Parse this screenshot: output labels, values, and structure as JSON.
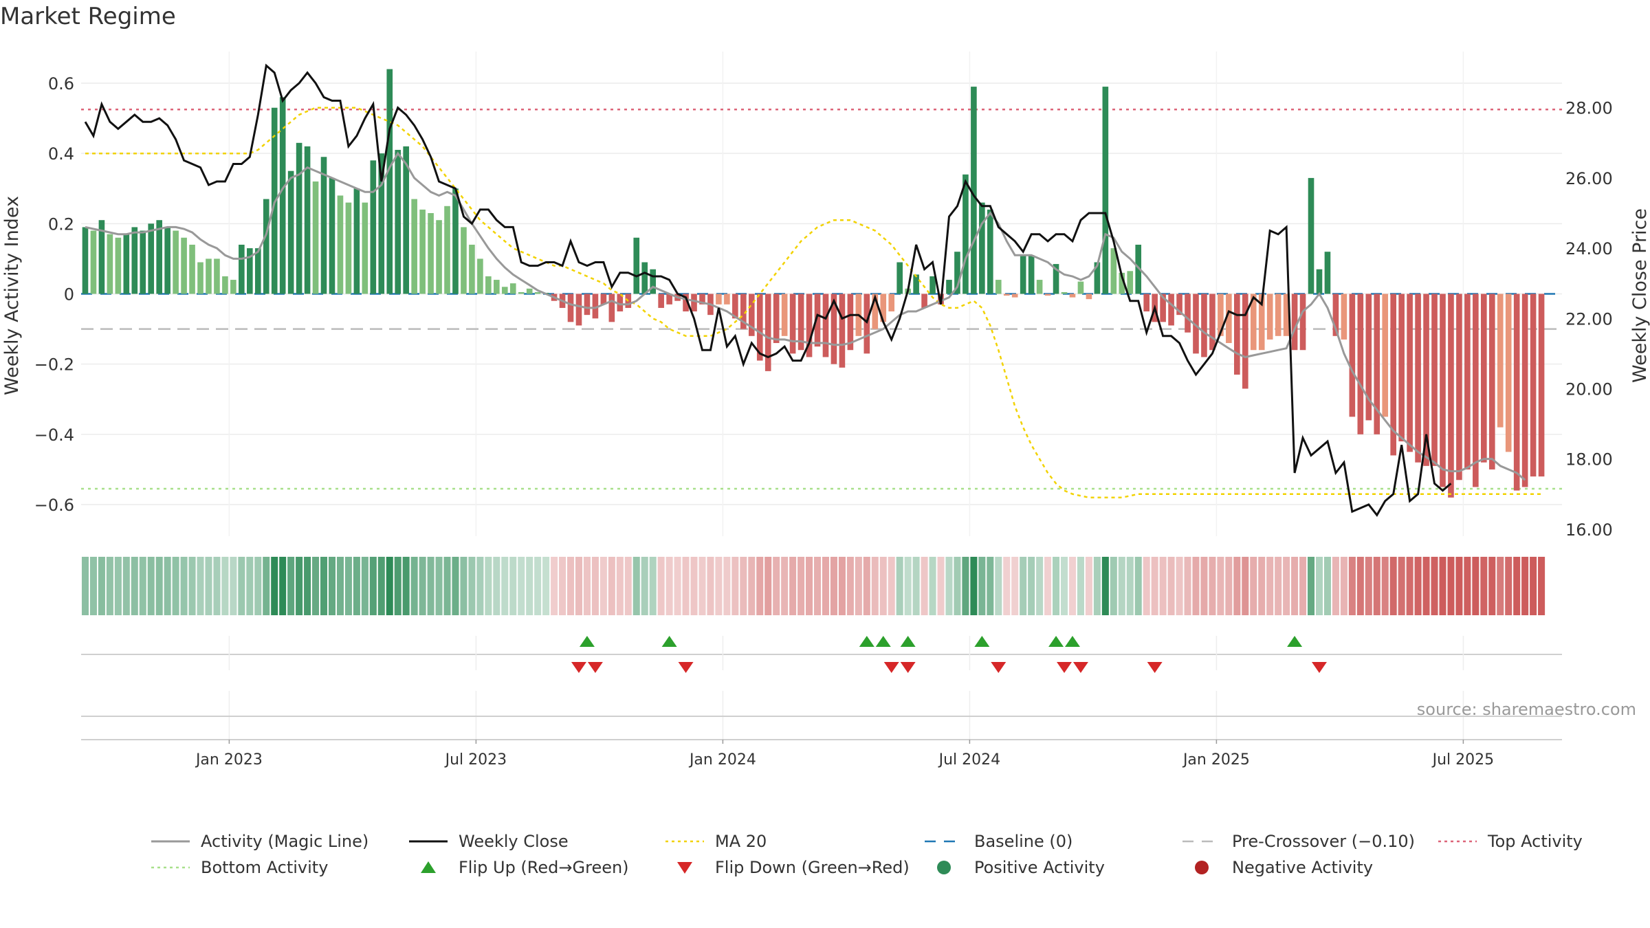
{
  "title": "Market Regime",
  "source": "source: sharemaestro.com",
  "colors": {
    "strong_green": "#2e8b57",
    "light_green": "#7fbf7b",
    "strong_red": "#cd5c5c",
    "light_red": "#e9967a",
    "magic_line": "#999999",
    "close_line": "#111111",
    "ma20": "#f2d200",
    "baseline": "#1f77b4",
    "pre_crossover": "#bbbbbb",
    "top_activity": "#dc6478",
    "bottom_activity": "#a8e08a",
    "flip_up": "#2ca02c",
    "flip_down": "#d62728"
  },
  "chart_data": {
    "type": "bar",
    "title": "Market Regime",
    "ylabel": "Weekly Activity Index",
    "y2label": "Weekly Close Price",
    "ylim": [
      -0.69,
      0.69
    ],
    "y2lim": [
      15.8,
      29.6
    ],
    "yticks": [
      "0.6",
      "0.4",
      "0.2",
      "0",
      "−0.2",
      "−0.4",
      "−0.6"
    ],
    "yticks_values": [
      0.6,
      0.4,
      0.2,
      0,
      -0.2,
      -0.4,
      -0.6
    ],
    "y2ticks": [
      "28.00",
      "26.00",
      "24.00",
      "22.00",
      "20.00",
      "18.00",
      "16.00"
    ],
    "y2ticks_values": [
      28,
      26,
      24,
      22,
      20,
      18,
      16
    ],
    "xticks": [
      "Jan 2023",
      "Jul 2023",
      "Jan 2024",
      "Jul 2024",
      "Jan 2025",
      "Jul 2025"
    ],
    "xticks_week_index": [
      18,
      48,
      78,
      108,
      138,
      168
    ],
    "x_week_count": 180,
    "top_activity": 0.525,
    "bottom_activity": -0.555,
    "pre_crossover": -0.1,
    "baseline": 0,
    "legend_position": "bottom",
    "legend": [
      "Activity (Magic Line)",
      "Weekly Close",
      "MA 20",
      "Baseline (0)",
      "Pre-Crossover (−0.10)",
      "Top Activity",
      "Bottom Activity",
      "Flip Up (Red→Green)",
      "Flip Down (Green→Red)",
      "Positive Activity",
      "Negative Activity"
    ],
    "activity": [
      0.19,
      0.18,
      0.21,
      0.17,
      0.16,
      0.17,
      0.19,
      0.18,
      0.2,
      0.21,
      0.19,
      0.18,
      0.16,
      0.14,
      0.09,
      0.1,
      0.1,
      0.05,
      0.04,
      0.14,
      0.13,
      0.13,
      0.27,
      0.53,
      0.56,
      0.35,
      0.43,
      0.42,
      0.32,
      0.39,
      0.33,
      0.28,
      0.26,
      0.3,
      0.26,
      0.38,
      0.4,
      0.64,
      0.41,
      0.42,
      0.27,
      0.24,
      0.23,
      0.21,
      0.25,
      0.3,
      0.19,
      0.14,
      0.1,
      0.05,
      0.04,
      0.02,
      0.03,
      0.005,
      0.015,
      0.005,
      0.003,
      -0.02,
      -0.04,
      -0.08,
      -0.09,
      -0.06,
      -0.07,
      -0.03,
      -0.08,
      -0.05,
      -0.04,
      0.16,
      0.09,
      0.07,
      -0.04,
      -0.03,
      -0.02,
      -0.05,
      -0.05,
      -0.03,
      -0.06,
      -0.03,
      -0.03,
      -0.07,
      -0.1,
      -0.12,
      -0.19,
      -0.22,
      -0.14,
      -0.12,
      -0.17,
      -0.16,
      -0.18,
      -0.15,
      -0.18,
      -0.2,
      -0.21,
      -0.16,
      -0.12,
      -0.17,
      -0.1,
      -0.08,
      -0.05,
      0.09,
      0.015,
      0.055,
      -0.04,
      0.05,
      -0.03,
      0.04,
      0.12,
      0.34,
      0.59,
      0.26,
      0.24,
      0.04,
      -0.005,
      -0.01,
      0.11,
      0.11,
      0.04,
      -0.005,
      0.085,
      0.005,
      -0.01,
      0.035,
      -0.015,
      0.09,
      0.59,
      0.13,
      0.06,
      0.065,
      0.14,
      -0.05,
      -0.08,
      -0.08,
      -0.09,
      -0.06,
      -0.11,
      -0.17,
      -0.18,
      -0.16,
      -0.12,
      -0.14,
      -0.23,
      -0.27,
      -0.16,
      -0.16,
      -0.13,
      -0.12,
      -0.12,
      -0.16,
      -0.16,
      0.33,
      0.07,
      0.12,
      -0.12,
      -0.13,
      -0.35,
      -0.4,
      -0.36,
      -0.4,
      -0.35,
      -0.46,
      -0.42,
      -0.45,
      -0.48,
      -0.49,
      -0.49,
      -0.55,
      -0.58,
      -0.53,
      -0.5,
      -0.55,
      -0.48,
      -0.5,
      -0.38,
      -0.45,
      -0.56,
      -0.55,
      -0.52,
      -0.52
    ],
    "magic_line": [
      0.19,
      0.185,
      0.18,
      0.175,
      0.17,
      0.17,
      0.175,
      0.175,
      0.18,
      0.185,
      0.19,
      0.19,
      0.185,
      0.175,
      0.155,
      0.14,
      0.13,
      0.11,
      0.1,
      0.1,
      0.105,
      0.12,
      0.17,
      0.26,
      0.3,
      0.33,
      0.34,
      0.36,
      0.35,
      0.34,
      0.33,
      0.32,
      0.31,
      0.3,
      0.29,
      0.29,
      0.31,
      0.36,
      0.4,
      0.37,
      0.33,
      0.31,
      0.29,
      0.28,
      0.29,
      0.28,
      0.24,
      0.2,
      0.165,
      0.13,
      0.1,
      0.075,
      0.055,
      0.04,
      0.025,
      0.01,
      0.0,
      -0.01,
      -0.02,
      -0.03,
      -0.035,
      -0.04,
      -0.04,
      -0.03,
      -0.02,
      -0.03,
      -0.03,
      -0.02,
      0.0,
      0.02,
      0.01,
      0.0,
      -0.01,
      -0.015,
      -0.02,
      -0.025,
      -0.03,
      -0.04,
      -0.05,
      -0.065,
      -0.08,
      -0.095,
      -0.11,
      -0.125,
      -0.13,
      -0.13,
      -0.135,
      -0.135,
      -0.14,
      -0.14,
      -0.14,
      -0.145,
      -0.145,
      -0.14,
      -0.13,
      -0.12,
      -0.11,
      -0.1,
      -0.08,
      -0.06,
      -0.05,
      -0.05,
      -0.04,
      -0.03,
      -0.02,
      -0.01,
      0.02,
      0.1,
      0.15,
      0.2,
      0.23,
      0.2,
      0.15,
      0.11,
      0.11,
      0.11,
      0.1,
      0.09,
      0.07,
      0.055,
      0.05,
      0.04,
      0.05,
      0.08,
      0.17,
      0.16,
      0.12,
      0.1,
      0.075,
      0.05,
      0.02,
      -0.01,
      -0.03,
      -0.05,
      -0.07,
      -0.09,
      -0.11,
      -0.125,
      -0.14,
      -0.155,
      -0.17,
      -0.18,
      -0.175,
      -0.17,
      -0.165,
      -0.16,
      -0.155,
      -0.1,
      -0.05,
      -0.03,
      0.0,
      -0.04,
      -0.1,
      -0.17,
      -0.22,
      -0.26,
      -0.3,
      -0.33,
      -0.36,
      -0.39,
      -0.41,
      -0.43,
      -0.45,
      -0.465,
      -0.48,
      -0.5,
      -0.505,
      -0.505,
      -0.495,
      -0.48,
      -0.47,
      -0.47,
      -0.49,
      -0.5,
      -0.51,
      -0.53
    ],
    "weekly_close": [
      27.6,
      27.2,
      28.1,
      27.6,
      27.4,
      27.6,
      27.8,
      27.6,
      27.6,
      27.7,
      27.5,
      27.1,
      26.5,
      26.4,
      26.3,
      25.8,
      25.9,
      25.9,
      26.4,
      26.4,
      26.6,
      27.8,
      29.2,
      29.0,
      28.2,
      28.5,
      28.7,
      29.0,
      28.7,
      28.3,
      28.2,
      28.2,
      26.9,
      27.2,
      27.7,
      28.1,
      25.9,
      27.4,
      28.0,
      27.8,
      27.5,
      27.1,
      26.6,
      25.9,
      25.8,
      25.7,
      24.9,
      24.7,
      25.1,
      25.1,
      24.8,
      24.6,
      24.6,
      23.6,
      23.5,
      23.5,
      23.6,
      23.6,
      23.5,
      24.2,
      23.6,
      23.5,
      23.6,
      23.6,
      22.9,
      23.3,
      23.3,
      23.2,
      23.3,
      23.2,
      23.2,
      23.1,
      22.7,
      22.6,
      22.0,
      21.1,
      21.1,
      22.3,
      21.2,
      21.5,
      20.7,
      21.3,
      21.0,
      20.9,
      21.0,
      21.2,
      20.8,
      20.8,
      21.3,
      22.1,
      22.0,
      22.5,
      22.0,
      22.1,
      22.1,
      21.9,
      22.6,
      21.9,
      21.4,
      22.0,
      22.8,
      24.1,
      23.4,
      23.6,
      22.4,
      24.9,
      25.2,
      25.9,
      25.5,
      25.2,
      25.2,
      24.6,
      24.4,
      24.2,
      23.9,
      24.4,
      24.4,
      24.2,
      24.4,
      24.4,
      24.2,
      24.8,
      25.0,
      25.0,
      25.0,
      24.2,
      23.2,
      22.5,
      22.5,
      21.6,
      22.3,
      21.5,
      21.5,
      21.3,
      20.8,
      20.4,
      20.7,
      21.0,
      21.6,
      22.2,
      22.1,
      22.1,
      22.6,
      22.4,
      24.5,
      24.4,
      24.6,
      17.6,
      18.6,
      18.1,
      18.3,
      18.5,
      17.6,
      17.9,
      16.5,
      16.6,
      16.7,
      16.4,
      16.8,
      17.0,
      18.4,
      16.8,
      17.0,
      18.7,
      17.3,
      17.1,
      17.3
    ],
    "ma20": [
      26.7,
      26.7,
      26.7,
      26.7,
      26.7,
      26.7,
      26.7,
      26.7,
      26.7,
      26.7,
      26.7,
      26.7,
      26.7,
      26.7,
      26.7,
      26.7,
      26.7,
      26.7,
      26.7,
      26.7,
      26.7,
      26.8,
      27.0,
      27.2,
      27.4,
      27.6,
      27.8,
      27.9,
      28.0,
      28.0,
      28.0,
      28.0,
      28.0,
      28.0,
      27.9,
      27.8,
      27.7,
      27.6,
      27.5,
      27.3,
      27.1,
      26.9,
      26.6,
      26.3,
      26.0,
      25.7,
      25.4,
      25.1,
      24.8,
      24.6,
      24.4,
      24.2,
      24.0,
      23.9,
      23.8,
      23.7,
      23.6,
      23.5,
      23.5,
      23.4,
      23.3,
      23.2,
      23.1,
      23.0,
      22.8,
      22.7,
      22.5,
      22.4,
      22.2,
      22.0,
      21.9,
      21.7,
      21.6,
      21.5,
      21.5,
      21.5,
      21.5,
      21.6,
      21.7,
      21.9,
      22.1,
      22.4,
      22.7,
      23.0,
      23.3,
      23.6,
      23.9,
      24.2,
      24.4,
      24.6,
      24.7,
      24.8,
      24.8,
      24.8,
      24.7,
      24.6,
      24.5,
      24.3,
      24.1,
      23.8,
      23.5,
      23.2,
      22.9,
      22.6,
      22.4,
      22.3,
      22.3,
      22.4,
      22.5,
      22.3,
      21.8,
      21.1,
      20.3,
      19.5,
      18.9,
      18.4,
      18.0,
      17.6,
      17.3,
      17.1,
      17.0,
      16.95,
      16.9,
      16.9,
      16.9,
      16.9,
      16.9,
      16.95,
      17.0,
      17.0,
      17.0,
      17.0,
      17.0,
      17.0,
      17.0,
      17.0,
      17.0,
      17.0,
      17.0,
      17.0,
      17.0,
      17.0,
      17.0,
      17.0,
      17.0,
      17.0,
      17.0,
      17.0,
      17.0,
      17.0,
      17.0,
      17.0,
      17.0,
      17.0,
      17.0,
      17.0,
      17.0,
      17.0,
      17.0,
      17.0,
      17.0,
      17.0,
      17.0,
      17.0,
      17.0,
      17.0,
      17.0,
      17.0,
      17.0,
      17.0,
      17.0,
      17.0,
      17.0,
      17.0,
      17.0,
      17.0,
      17.0,
      17.0
    ],
    "flip_up_weeks": [
      61,
      71,
      95,
      97,
      100,
      109,
      118,
      120,
      147
    ],
    "flip_down_weeks": [
      60,
      62,
      73,
      98,
      100,
      111,
      119,
      121,
      130,
      150
    ]
  },
  "legend_markers": [
    "line",
    "line",
    "dotted",
    "dashed",
    "dashed",
    "dotted",
    "dotted",
    "triangle-up",
    "triangle-down",
    "circle",
    "circle"
  ]
}
